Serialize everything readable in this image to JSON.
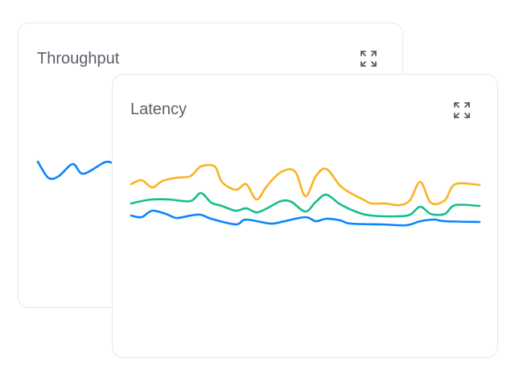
{
  "cards": [
    {
      "title": "Throughput",
      "icon": "expand-icon"
    },
    {
      "title": "Latency",
      "icon": "expand-icon"
    }
  ],
  "chart_data": [
    {
      "type": "line",
      "title": "Throughput",
      "grid": false,
      "series": [
        {
          "color": "#0a84ff",
          "x": [
            0,
            3,
            6,
            10,
            13,
            19,
            21
          ],
          "y": [
            80,
            60,
            62,
            77,
            65,
            79,
            79
          ]
        }
      ]
    },
    {
      "type": "line",
      "title": "Latency",
      "grid": false,
      "series": [
        {
          "color": "#fbb321",
          "x": [
            0,
            3,
            6,
            9,
            13,
            17,
            20,
            24,
            26,
            30,
            33,
            36,
            39,
            43,
            47,
            50,
            53,
            56,
            60,
            63,
            67,
            69,
            73,
            77,
            80,
            83,
            86,
            90,
            93,
            100
          ],
          "y": [
            52,
            57,
            48,
            56,
            60,
            62,
            74,
            74,
            55,
            45,
            52,
            33,
            50,
            67,
            68,
            37,
            62,
            71,
            50,
            41,
            32,
            28,
            28,
            26,
            32,
            55,
            29,
            32,
            52,
            51
          ]
        },
        {
          "color": "#12bf8e",
          "x": [
            0,
            3,
            6,
            11,
            17,
            20,
            23,
            26,
            30,
            33,
            36,
            39,
            43,
            46,
            50,
            53,
            56,
            60,
            65,
            69,
            76,
            80,
            83,
            86,
            90,
            93,
            100
          ],
          "y": [
            28,
            31,
            33,
            33,
            31,
            41,
            29,
            25,
            19,
            22,
            17,
            22,
            31,
            30,
            18,
            30,
            39,
            27,
            17,
            13,
            12,
            14,
            24,
            15,
            15,
            26,
            25
          ]
        },
        {
          "color": "#0a84ff",
          "x": [
            0,
            3,
            6,
            10,
            13,
            17,
            20,
            23,
            30,
            33,
            40,
            44,
            50,
            53,
            56,
            60,
            63,
            72,
            79,
            83,
            87,
            90,
            100
          ],
          "y": [
            13,
            11,
            19,
            15,
            10,
            13,
            14,
            9,
            2,
            8,
            3,
            6,
            11,
            6,
            9,
            7,
            3,
            2,
            1,
            6,
            8,
            6,
            5
          ]
        }
      ]
    }
  ]
}
